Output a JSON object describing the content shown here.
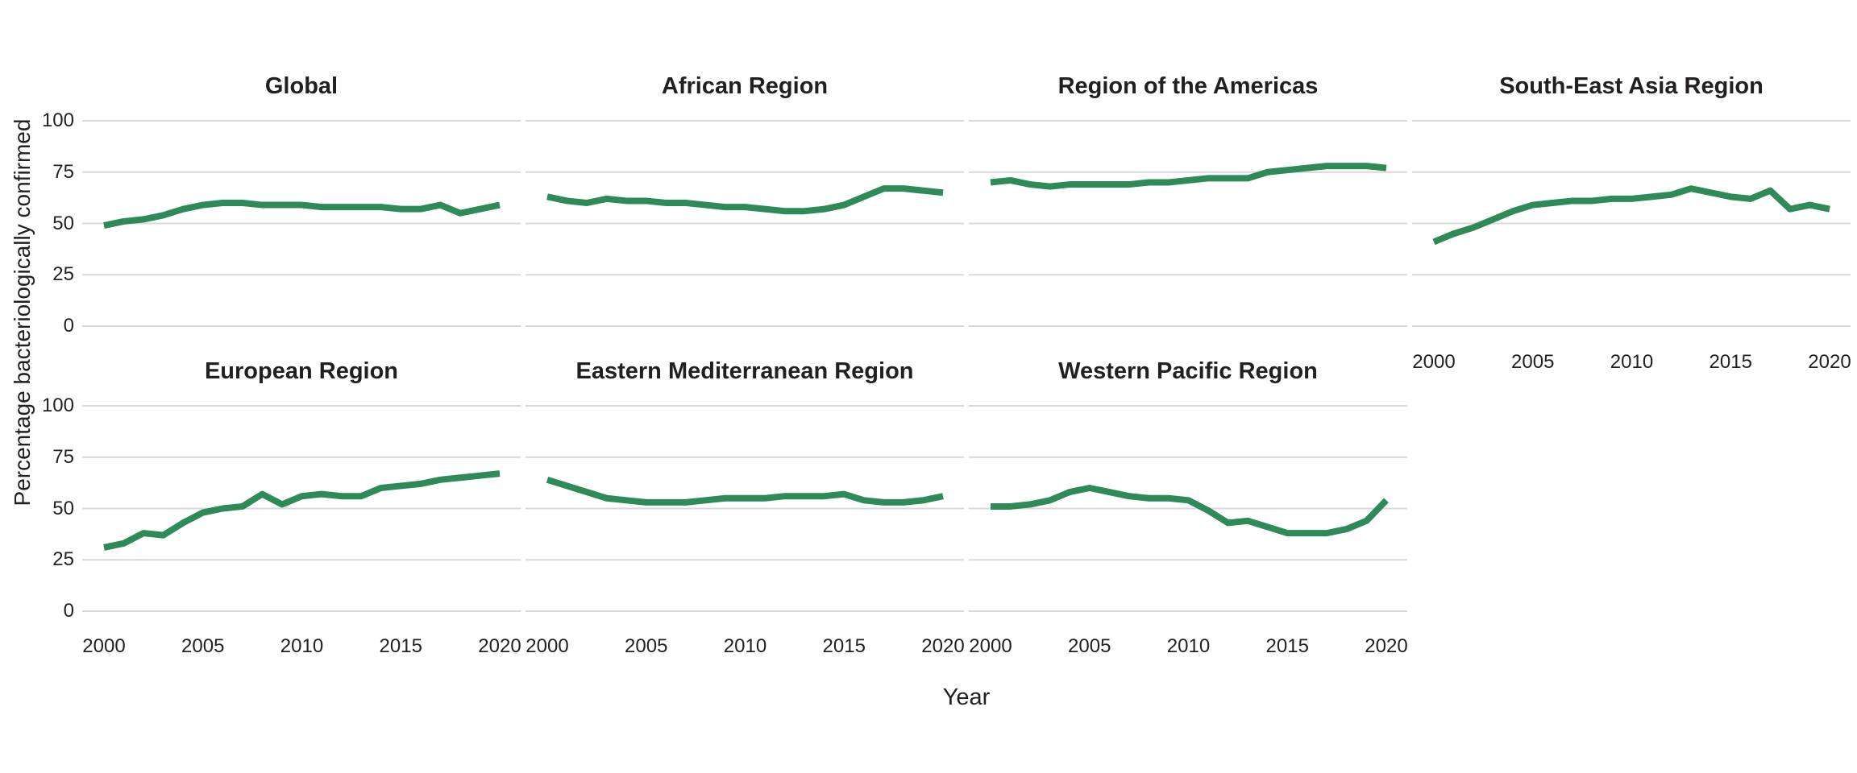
{
  "figure": {
    "y_axis_title": "Percentage bacteriologically confirmed",
    "x_axis_title": "Year",
    "line_color": "#2e8b57",
    "gridline_color": "#d9d9d9",
    "text_color": "#231f20",
    "background_color": "#ffffff"
  },
  "chart_data": {
    "type": "line",
    "title": "",
    "xlabel": "Year",
    "ylabel": "Percentage bacteriologically confirmed",
    "x": [
      2000,
      2001,
      2002,
      2003,
      2004,
      2005,
      2006,
      2007,
      2008,
      2009,
      2010,
      2011,
      2012,
      2013,
      2014,
      2015,
      2016,
      2017,
      2018,
      2019,
      2020
    ],
    "x_tick_labels": [
      "2000",
      "2005",
      "2010",
      "2015",
      "2020"
    ],
    "x_tick_values": [
      2000,
      2005,
      2010,
      2015,
      2020
    ],
    "y_tick_labels": [
      "100",
      "75",
      "50",
      "25",
      "0"
    ],
    "y_tick_values": [
      100,
      75,
      50,
      25,
      0
    ],
    "ylim": [
      0,
      100
    ],
    "grid": "horizontal-gridlines-only",
    "legend": "none",
    "facet_layout": "2 rows x 4 columns, 7 panels",
    "series": [
      {
        "name": "Global",
        "values": [
          49,
          51,
          52,
          54,
          57,
          59,
          60,
          60,
          59,
          59,
          59,
          58,
          58,
          58,
          58,
          57,
          57,
          59,
          55,
          57,
          59
        ]
      },
      {
        "name": "African Region",
        "values": [
          63,
          61,
          60,
          62,
          61,
          61,
          60,
          60,
          59,
          58,
          58,
          57,
          56,
          56,
          57,
          59,
          63,
          67,
          67,
          66,
          65
        ]
      },
      {
        "name": "Region of the Americas",
        "values": [
          70,
          71,
          69,
          68,
          69,
          69,
          69,
          69,
          70,
          70,
          71,
          72,
          72,
          72,
          75,
          76,
          77,
          78,
          78,
          78,
          77
        ]
      },
      {
        "name": "South-East Asia Region",
        "values": [
          41,
          45,
          48,
          52,
          56,
          59,
          60,
          61,
          61,
          62,
          62,
          63,
          64,
          67,
          65,
          63,
          62,
          66,
          57,
          59,
          57
        ]
      },
      {
        "name": "European Region",
        "values": [
          31,
          33,
          38,
          37,
          43,
          48,
          50,
          51,
          57,
          52,
          56,
          57,
          56,
          56,
          60,
          61,
          62,
          64,
          65,
          66,
          67
        ]
      },
      {
        "name": "Eastern Mediterranean Region",
        "values": [
          64,
          61,
          58,
          55,
          54,
          53,
          53,
          53,
          54,
          55,
          55,
          55,
          56,
          56,
          56,
          57,
          54,
          53,
          53,
          54,
          56
        ]
      },
      {
        "name": "Western Pacific Region",
        "values": [
          51,
          51,
          52,
          54,
          58,
          60,
          58,
          56,
          55,
          55,
          54,
          49,
          43,
          44,
          41,
          38,
          38,
          38,
          40,
          44,
          54
        ]
      }
    ]
  }
}
